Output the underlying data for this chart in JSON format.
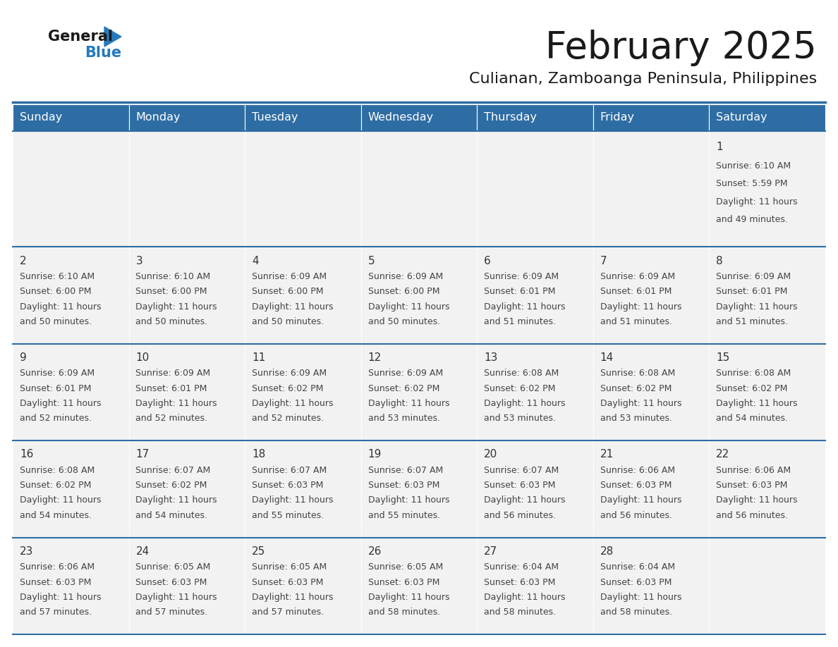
{
  "title": "February 2025",
  "subtitle": "Culianan, Zamboanga Peninsula, Philippines",
  "header_bg": "#2E6DA4",
  "header_text": "#FFFFFF",
  "cell_bg": "#F2F2F2",
  "day_headers": [
    "Sunday",
    "Monday",
    "Tuesday",
    "Wednesday",
    "Thursday",
    "Friday",
    "Saturday"
  ],
  "title_color": "#1a1a1a",
  "subtitle_color": "#1a1a1a",
  "line_color": "#2E6DA4",
  "day_number_color": "#333333",
  "text_color": "#444444",
  "calendar_data": [
    [
      null,
      null,
      null,
      null,
      null,
      null,
      {
        "day": "1",
        "sunrise": "6:10 AM",
        "sunset": "5:59 PM",
        "daylight_line1": "Daylight: 11 hours",
        "daylight_line2": "and 49 minutes."
      }
    ],
    [
      {
        "day": "2",
        "sunrise": "6:10 AM",
        "sunset": "6:00 PM",
        "daylight_line1": "Daylight: 11 hours",
        "daylight_line2": "and 50 minutes."
      },
      {
        "day": "3",
        "sunrise": "6:10 AM",
        "sunset": "6:00 PM",
        "daylight_line1": "Daylight: 11 hours",
        "daylight_line2": "and 50 minutes."
      },
      {
        "day": "4",
        "sunrise": "6:09 AM",
        "sunset": "6:00 PM",
        "daylight_line1": "Daylight: 11 hours",
        "daylight_line2": "and 50 minutes."
      },
      {
        "day": "5",
        "sunrise": "6:09 AM",
        "sunset": "6:00 PM",
        "daylight_line1": "Daylight: 11 hours",
        "daylight_line2": "and 50 minutes."
      },
      {
        "day": "6",
        "sunrise": "6:09 AM",
        "sunset": "6:01 PM",
        "daylight_line1": "Daylight: 11 hours",
        "daylight_line2": "and 51 minutes."
      },
      {
        "day": "7",
        "sunrise": "6:09 AM",
        "sunset": "6:01 PM",
        "daylight_line1": "Daylight: 11 hours",
        "daylight_line2": "and 51 minutes."
      },
      {
        "day": "8",
        "sunrise": "6:09 AM",
        "sunset": "6:01 PM",
        "daylight_line1": "Daylight: 11 hours",
        "daylight_line2": "and 51 minutes."
      }
    ],
    [
      {
        "day": "9",
        "sunrise": "6:09 AM",
        "sunset": "6:01 PM",
        "daylight_line1": "Daylight: 11 hours",
        "daylight_line2": "and 52 minutes."
      },
      {
        "day": "10",
        "sunrise": "6:09 AM",
        "sunset": "6:01 PM",
        "daylight_line1": "Daylight: 11 hours",
        "daylight_line2": "and 52 minutes."
      },
      {
        "day": "11",
        "sunrise": "6:09 AM",
        "sunset": "6:02 PM",
        "daylight_line1": "Daylight: 11 hours",
        "daylight_line2": "and 52 minutes."
      },
      {
        "day": "12",
        "sunrise": "6:09 AM",
        "sunset": "6:02 PM",
        "daylight_line1": "Daylight: 11 hours",
        "daylight_line2": "and 53 minutes."
      },
      {
        "day": "13",
        "sunrise": "6:08 AM",
        "sunset": "6:02 PM",
        "daylight_line1": "Daylight: 11 hours",
        "daylight_line2": "and 53 minutes."
      },
      {
        "day": "14",
        "sunrise": "6:08 AM",
        "sunset": "6:02 PM",
        "daylight_line1": "Daylight: 11 hours",
        "daylight_line2": "and 53 minutes."
      },
      {
        "day": "15",
        "sunrise": "6:08 AM",
        "sunset": "6:02 PM",
        "daylight_line1": "Daylight: 11 hours",
        "daylight_line2": "and 54 minutes."
      }
    ],
    [
      {
        "day": "16",
        "sunrise": "6:08 AM",
        "sunset": "6:02 PM",
        "daylight_line1": "Daylight: 11 hours",
        "daylight_line2": "and 54 minutes."
      },
      {
        "day": "17",
        "sunrise": "6:07 AM",
        "sunset": "6:02 PM",
        "daylight_line1": "Daylight: 11 hours",
        "daylight_line2": "and 54 minutes."
      },
      {
        "day": "18",
        "sunrise": "6:07 AM",
        "sunset": "6:03 PM",
        "daylight_line1": "Daylight: 11 hours",
        "daylight_line2": "and 55 minutes."
      },
      {
        "day": "19",
        "sunrise": "6:07 AM",
        "sunset": "6:03 PM",
        "daylight_line1": "Daylight: 11 hours",
        "daylight_line2": "and 55 minutes."
      },
      {
        "day": "20",
        "sunrise": "6:07 AM",
        "sunset": "6:03 PM",
        "daylight_line1": "Daylight: 11 hours",
        "daylight_line2": "and 56 minutes."
      },
      {
        "day": "21",
        "sunrise": "6:06 AM",
        "sunset": "6:03 PM",
        "daylight_line1": "Daylight: 11 hours",
        "daylight_line2": "and 56 minutes."
      },
      {
        "day": "22",
        "sunrise": "6:06 AM",
        "sunset": "6:03 PM",
        "daylight_line1": "Daylight: 11 hours",
        "daylight_line2": "and 56 minutes."
      }
    ],
    [
      {
        "day": "23",
        "sunrise": "6:06 AM",
        "sunset": "6:03 PM",
        "daylight_line1": "Daylight: 11 hours",
        "daylight_line2": "and 57 minutes."
      },
      {
        "day": "24",
        "sunrise": "6:05 AM",
        "sunset": "6:03 PM",
        "daylight_line1": "Daylight: 11 hours",
        "daylight_line2": "and 57 minutes."
      },
      {
        "day": "25",
        "sunrise": "6:05 AM",
        "sunset": "6:03 PM",
        "daylight_line1": "Daylight: 11 hours",
        "daylight_line2": "and 57 minutes."
      },
      {
        "day": "26",
        "sunrise": "6:05 AM",
        "sunset": "6:03 PM",
        "daylight_line1": "Daylight: 11 hours",
        "daylight_line2": "and 58 minutes."
      },
      {
        "day": "27",
        "sunrise": "6:04 AM",
        "sunset": "6:03 PM",
        "daylight_line1": "Daylight: 11 hours",
        "daylight_line2": "and 58 minutes."
      },
      {
        "day": "28",
        "sunrise": "6:04 AM",
        "sunset": "6:03 PM",
        "daylight_line1": "Daylight: 11 hours",
        "daylight_line2": "and 58 minutes."
      },
      null
    ]
  ],
  "logo_general_color": "#1a1a1a",
  "logo_blue_color": "#2779BD"
}
